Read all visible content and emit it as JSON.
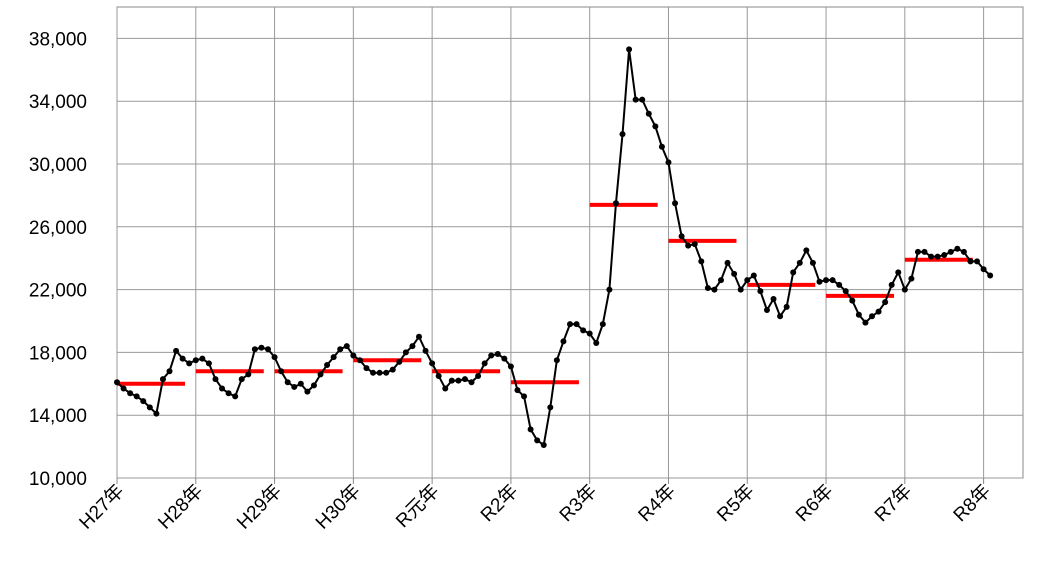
{
  "chart_data": {
    "type": "line",
    "x": [
      0,
      1,
      2,
      3,
      4,
      5,
      6,
      7,
      8,
      9,
      10,
      11,
      12,
      13,
      14,
      15,
      16,
      17,
      18,
      19,
      20,
      21,
      22,
      23,
      24,
      25,
      26,
      27,
      28,
      29,
      30,
      31,
      32,
      33,
      34,
      35,
      36,
      37,
      38,
      39,
      40,
      41,
      42,
      43,
      44,
      45,
      46,
      47,
      48,
      49,
      50,
      51,
      52,
      53,
      54,
      55,
      56,
      57,
      58,
      59,
      60,
      61,
      62,
      63,
      64,
      65,
      66,
      67,
      68,
      69,
      70,
      71,
      72,
      73,
      74,
      75,
      76,
      77,
      78,
      79,
      80,
      81,
      82,
      83,
      84,
      85,
      86,
      87,
      88,
      89,
      90,
      91,
      92,
      93,
      94,
      95,
      96,
      97,
      98,
      99,
      100,
      101,
      102,
      103,
      104,
      105,
      106,
      107,
      108,
      109,
      110,
      111,
      112,
      113,
      114,
      115,
      116,
      117,
      118,
      119,
      120,
      121,
      122,
      123,
      124,
      125,
      126,
      127,
      128,
      129,
      130,
      131,
      132,
      133
    ],
    "series": [
      {
        "color": "#000000",
        "values": [
          16100,
          15700,
          15400,
          15200,
          14900,
          14500,
          14100,
          16300,
          16800,
          18100,
          17600,
          17300,
          17500,
          17600,
          17300,
          16300,
          15700,
          15400,
          15200,
          16300,
          16600,
          18200,
          18300,
          18200,
          17700,
          16800,
          16100,
          15800,
          16000,
          15500,
          15900,
          16600,
          17200,
          17700,
          18200,
          18400,
          17800,
          17500,
          17000,
          16700,
          16700,
          16700,
          16900,
          17400,
          18000,
          18400,
          19000,
          18100,
          17300,
          16500,
          15700,
          16200,
          16200,
          16300,
          16100,
          16500,
          17300,
          17800,
          17900,
          17600,
          17100,
          15600,
          15200,
          13100,
          12400,
          12100,
          14500,
          17500,
          18700,
          19800,
          19800,
          19400,
          19200,
          18600,
          19800,
          22000,
          27500,
          31900,
          37300,
          34100,
          34100,
          33200,
          32400,
          31100,
          30100,
          27500,
          25400,
          24800,
          24900,
          23800,
          22100,
          22000,
          22600,
          23700,
          23000,
          22000,
          22600,
          22900,
          21900,
          20700,
          21400,
          20300,
          20900,
          23100,
          23700,
          24500,
          23700,
          22500,
          22600,
          22600,
          22300,
          21900,
          21300,
          20400,
          19900,
          20300,
          20600,
          21200,
          22300,
          23100,
          22000,
          22700,
          24400,
          24400,
          24100,
          24100,
          24200,
          24400,
          24600,
          24400,
          23800,
          23800,
          23300,
          22900
        ]
      }
    ],
    "annual_averages": {
      "color": "#ff0000",
      "values": [
        16000,
        16800,
        16800,
        17500,
        16800,
        16100,
        27400,
        25100,
        22300,
        21600,
        23900
      ]
    },
    "xlim": [
      0,
      138
    ],
    "xticks": [
      {
        "value": 0,
        "label": "H27年"
      },
      {
        "value": 12,
        "label": "H28年"
      },
      {
        "value": 24,
        "label": "H29年"
      },
      {
        "value": 36,
        "label": "H30年"
      },
      {
        "value": 48,
        "label": "R元年"
      },
      {
        "value": 60,
        "label": "R2年"
      },
      {
        "value": 72,
        "label": "R3年"
      },
      {
        "value": 84,
        "label": "R4年"
      },
      {
        "value": 96,
        "label": "R5年"
      },
      {
        "value": 108,
        "label": "R6年"
      },
      {
        "value": 120,
        "label": "R7年"
      },
      {
        "value": 132,
        "label": "R8年"
      }
    ],
    "ylim": [
      10000,
      40000
    ],
    "yticks": [
      {
        "value": 10000,
        "label": "10,000"
      },
      {
        "value": 14000,
        "label": "14,000"
      },
      {
        "value": 18000,
        "label": "18,000"
      },
      {
        "value": 22000,
        "label": "22,000"
      },
      {
        "value": 26000,
        "label": "26,000"
      },
      {
        "value": 30000,
        "label": "30,000"
      },
      {
        "value": 34000,
        "label": "34,000"
      },
      {
        "value": 38000,
        "label": "38,000"
      }
    ],
    "grid": true
  }
}
